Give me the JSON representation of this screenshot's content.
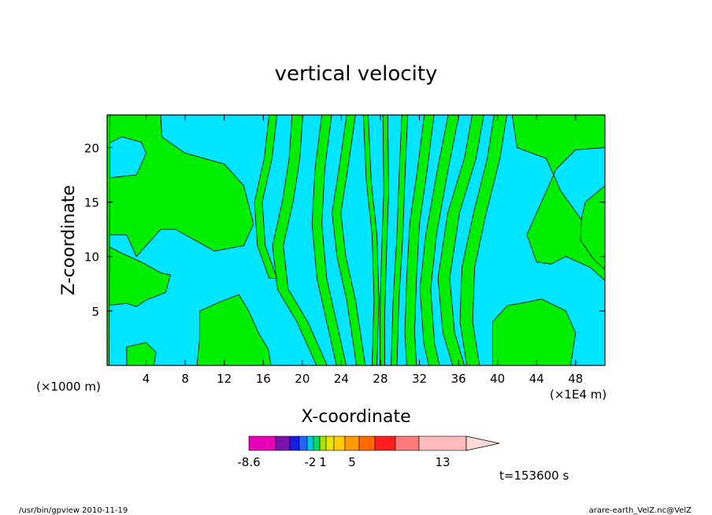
{
  "chart_data": {
    "type": "contour",
    "title": "vertical velocity",
    "xlabel": "X-coordinate",
    "ylabel": "Z-coordinate",
    "x_unit_left": "(×1000 m)",
    "x_unit_right": "(×1E4 m)",
    "xlim": [
      0,
      51
    ],
    "ylim": [
      0,
      23
    ],
    "xticks": [
      4,
      8,
      12,
      16,
      20,
      24,
      28,
      32,
      36,
      40,
      44,
      48
    ],
    "yticks": [
      5,
      10,
      15,
      20
    ],
    "fill_colors": {
      "positive": "#00ee00",
      "negative": "#00e5ff"
    },
    "colorbar": {
      "colors": [
        "#e800b8",
        "#7a12b0",
        "#1a1ae6",
        "#2266ff",
        "#00c8e6",
        "#00dd66",
        "#a8e000",
        "#e6e600",
        "#ffcc00",
        "#ff9900",
        "#ff6a00",
        "#ff1e1e",
        "#ff7a7a",
        "#ffbcbc"
      ],
      "extend_color": "#ffd8d8",
      "tick_labels": [
        {
          "text": "-8.6",
          "index": 0
        },
        {
          "text": "-2",
          "index": 4
        },
        {
          "text": "1",
          "index": 6
        },
        {
          "text": "5",
          "index": 9
        },
        {
          "text": "13",
          "index": 13
        }
      ]
    }
  },
  "time_label": "t=153600 s",
  "footer": {
    "left": "/usr/bin/gpview   2010-11-19",
    "right": "arare-earth_VelZ.nc@VelZ"
  }
}
